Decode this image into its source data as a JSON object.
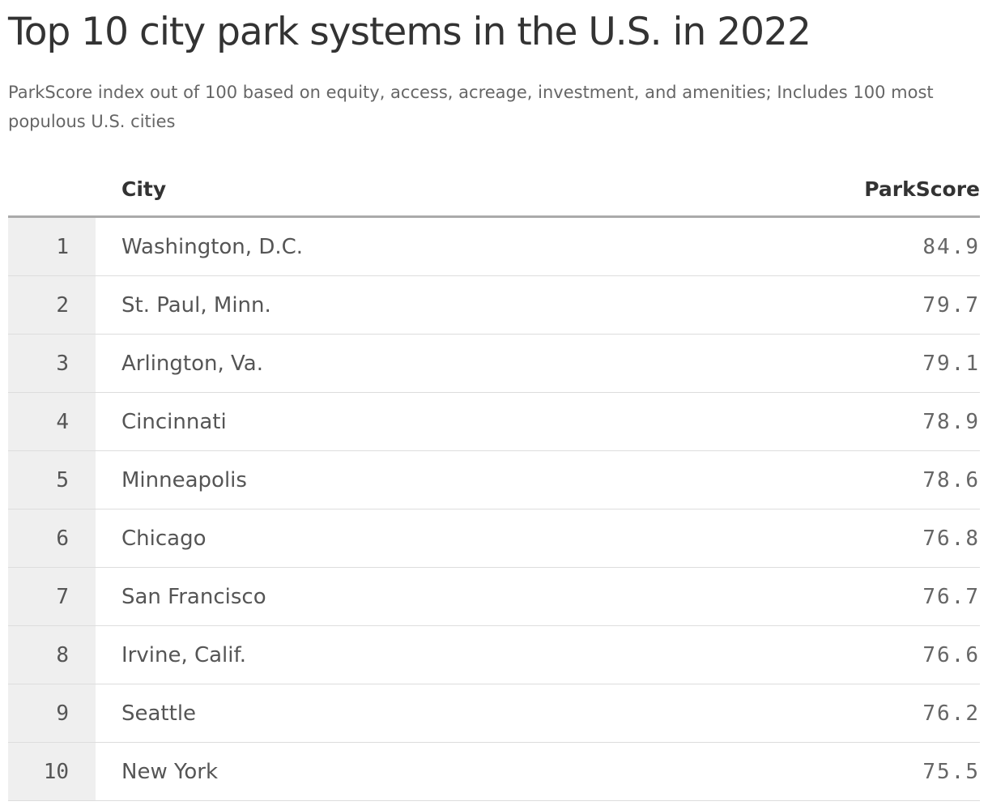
{
  "header": {
    "title": "Top 10 city park systems in the U.S. in 2022",
    "subtitle": "ParkScore index out of 100 based on equity, access, acreage, investment, and amenities; Includes 100 most populous U.S. cities"
  },
  "table": {
    "columns": [
      "City",
      "ParkScore"
    ],
    "rows": [
      [
        1,
        "Washington, D.C.",
        84.9
      ],
      [
        2,
        "St. Paul, Minn.",
        79.7
      ],
      [
        3,
        "Arlington, Va.",
        79.1
      ],
      [
        4,
        "Cincinnati",
        78.9
      ],
      [
        5,
        "Minneapolis",
        78.6
      ],
      [
        6,
        "Chicago",
        76.8
      ],
      [
        7,
        "San Francisco",
        76.7
      ],
      [
        8,
        "Irvine, Calif.",
        76.6
      ],
      [
        9,
        "Seattle",
        76.2
      ],
      [
        10,
        "New York",
        75.5
      ]
    ]
  }
}
